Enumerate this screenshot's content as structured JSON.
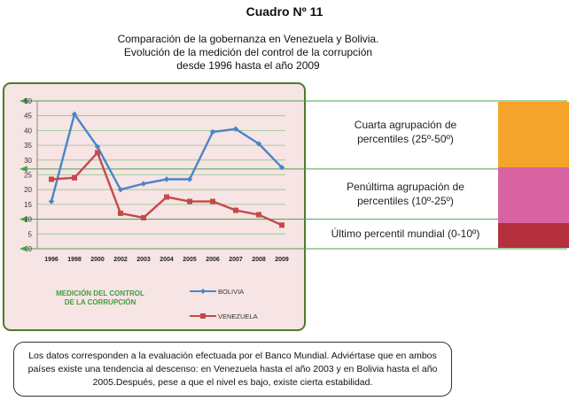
{
  "title": "Cuadro Nº 11",
  "subtitle": [
    "Comparación de la gobernanza en Venezuela y Bolivia.",
    "Evolución de la medición del control de la corrupción",
    "desde 1996 hasta el año 2009"
  ],
  "colors": {
    "bolivia": "#4a86c8",
    "venezuela": "#c44a4a",
    "panel_bg": "#f7e4e4",
    "panel_border": "#4e7a2e",
    "grid": "#8cc68c",
    "band_arrow": "#4ea24e",
    "caption_green": "#3f9e3f",
    "band_orange": "#f4a32b",
    "band_pink": "#d863a3",
    "band_red": "#b5303f"
  },
  "chart_data": {
    "type": "line",
    "categories": [
      "1996",
      "1998",
      "2000",
      "2002",
      "2003",
      "2004",
      "2005",
      "2006",
      "2007",
      "2008",
      "2009"
    ],
    "series": [
      {
        "name": "BOLIVIA",
        "values": [
          16,
          45.5,
          34.5,
          20,
          22,
          23.5,
          23.5,
          39.5,
          40.5,
          35.5,
          27.5
        ]
      },
      {
        "name": "VENEZUELA",
        "values": [
          23.5,
          24,
          32.5,
          12,
          10.5,
          17.5,
          16,
          16,
          13,
          11.5,
          8
        ]
      }
    ],
    "ylim": [
      0,
      50
    ],
    "yticks": [
      0,
      5,
      10,
      15,
      20,
      25,
      30,
      35,
      40,
      45,
      50
    ],
    "caption": [
      "MEDICIÓN DEL CONTROL",
      "DE LA CORRUPCIÓN"
    ],
    "reference_lines": [
      50,
      27,
      10,
      0
    ]
  },
  "bands": [
    {
      "lines": [
        "Cuarta agrupación de",
        "percentiles (25º-50º)"
      ]
    },
    {
      "lines": [
        "Penúltima agrupación de",
        "percentiles (10º-25º)"
      ]
    },
    {
      "lines": [
        "Último percentil mundial (0-10º)"
      ]
    }
  ],
  "note": "Los datos corresponden a la evaluación efectuada por el Banco Mundial. Adviértase que en ambos países existe una tendencia al descenso: en Venezuela hasta el año 2003 y en Bolivia hasta el año 2005.Después, pese a que el nivel es bajo, existe cierta estabilidad."
}
